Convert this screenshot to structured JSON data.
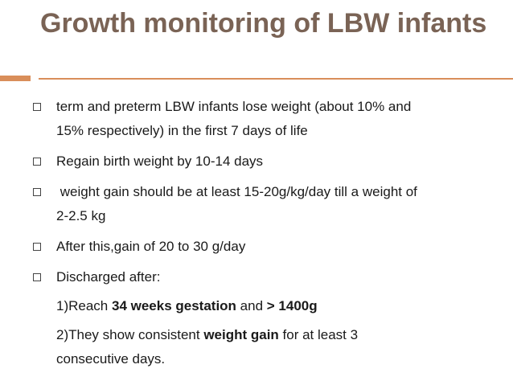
{
  "title": "Growth monitoring of LBW infants",
  "bullets": [
    {
      "line1": "term and preterm LBW infants lose weight (about 10% and",
      "line2": "15% respectively) in the first 7 days of life"
    },
    {
      "line1": "Regain birth weight by 10-14 days"
    },
    {
      "line1": " weight gain should be at least 15-20g/kg/day till a weight of",
      "line2": "2-2.5 kg"
    },
    {
      "line1": "After this,gain of 20 to 30 g/day"
    },
    {
      "line1": "Discharged after:"
    }
  ],
  "sub1": {
    "pre": "1)Reach ",
    "bold1": "34 weeks gestation",
    "mid": " and ",
    "bold2": "> 1400g"
  },
  "sub2": {
    "pre": "2)They show consistent ",
    "bold": "weight gain",
    "post": " for at least 3",
    "line2": "consecutive days."
  }
}
